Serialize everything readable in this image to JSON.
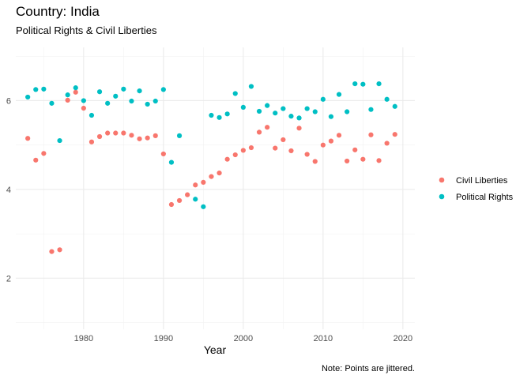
{
  "chart_data": {
    "type": "scatter",
    "title": "Country: India",
    "subtitle": "Political Rights & Civil Liberties",
    "xlabel": "Year",
    "ylabel": "",
    "caption": "Note: Points are jittered.",
    "xlim": [
      1971.5,
      2021.5
    ],
    "ylim": [
      0.85,
      7.2
    ],
    "x_ticks": [
      1980,
      1990,
      2000,
      2010,
      2020
    ],
    "y_ticks": [
      2,
      4,
      6
    ],
    "grid": true,
    "legend_position": "right",
    "series": [
      {
        "name": "Civil Liberties",
        "color": "#F8766D",
        "points": [
          [
            1973,
            5.15
          ],
          [
            1974,
            4.66
          ],
          [
            1975,
            4.81
          ],
          [
            1976,
            2.6
          ],
          [
            1977,
            2.64
          ],
          [
            1978,
            6.01
          ],
          [
            1979,
            6.19
          ],
          [
            1980,
            5.83
          ],
          [
            1981,
            5.07
          ],
          [
            1982,
            5.19
          ],
          [
            1983,
            5.27
          ],
          [
            1984,
            5.27
          ],
          [
            1985,
            5.27
          ],
          [
            1986,
            5.22
          ],
          [
            1987,
            5.14
          ],
          [
            1988,
            5.16
          ],
          [
            1989,
            5.21
          ],
          [
            1990,
            4.8
          ],
          [
            1991,
            3.66
          ],
          [
            1992,
            3.75
          ],
          [
            1993,
            3.88
          ],
          [
            1994,
            4.1
          ],
          [
            1995,
            4.16
          ],
          [
            1996,
            4.29
          ],
          [
            1997,
            4.37
          ],
          [
            1998,
            4.68
          ],
          [
            1999,
            4.78
          ],
          [
            2000,
            4.88
          ],
          [
            2001,
            4.94
          ],
          [
            2002,
            5.29
          ],
          [
            2003,
            5.4
          ],
          [
            2004,
            4.93
          ],
          [
            2005,
            5.12
          ],
          [
            2006,
            4.87
          ],
          [
            2007,
            5.38
          ],
          [
            2008,
            4.79
          ],
          [
            2009,
            4.63
          ],
          [
            2010,
            5.0
          ],
          [
            2011,
            5.09
          ],
          [
            2012,
            5.22
          ],
          [
            2013,
            4.64
          ],
          [
            2014,
            4.89
          ],
          [
            2015,
            4.68
          ],
          [
            2016,
            5.23
          ],
          [
            2017,
            4.65
          ],
          [
            2018,
            5.04
          ],
          [
            2019,
            5.24
          ]
        ]
      },
      {
        "name": "Political Rights",
        "color": "#00BFC4",
        "points": [
          [
            1973,
            6.08
          ],
          [
            1974,
            6.25
          ],
          [
            1975,
            6.26
          ],
          [
            1976,
            5.94
          ],
          [
            1977,
            5.1
          ],
          [
            1978,
            6.13
          ],
          [
            1979,
            6.29
          ],
          [
            1980,
            6.0
          ],
          [
            1981,
            5.67
          ],
          [
            1982,
            6.2
          ],
          [
            1983,
            5.94
          ],
          [
            1984,
            6.1
          ],
          [
            1985,
            6.26
          ],
          [
            1986,
            5.99
          ],
          [
            1987,
            6.22
          ],
          [
            1988,
            5.92
          ],
          [
            1989,
            5.99
          ],
          [
            1990,
            6.25
          ],
          [
            1991,
            4.61
          ],
          [
            1992,
            5.21
          ],
          [
            1994,
            3.78
          ],
          [
            1995,
            3.61
          ],
          [
            1996,
            5.67
          ],
          [
            1997,
            5.62
          ],
          [
            1998,
            5.7
          ],
          [
            1999,
            6.16
          ],
          [
            2000,
            5.85
          ],
          [
            2001,
            6.32
          ],
          [
            2002,
            5.76
          ],
          [
            2003,
            5.89
          ],
          [
            2004,
            5.72
          ],
          [
            2005,
            5.82
          ],
          [
            2006,
            5.65
          ],
          [
            2007,
            5.61
          ],
          [
            2008,
            5.82
          ],
          [
            2009,
            5.75
          ],
          [
            2010,
            6.03
          ],
          [
            2011,
            5.64
          ],
          [
            2012,
            6.14
          ],
          [
            2013,
            5.75
          ],
          [
            2014,
            6.38
          ],
          [
            2015,
            6.37
          ],
          [
            2016,
            5.8
          ],
          [
            2017,
            6.38
          ],
          [
            2018,
            6.03
          ],
          [
            2019,
            5.87
          ]
        ]
      }
    ]
  }
}
